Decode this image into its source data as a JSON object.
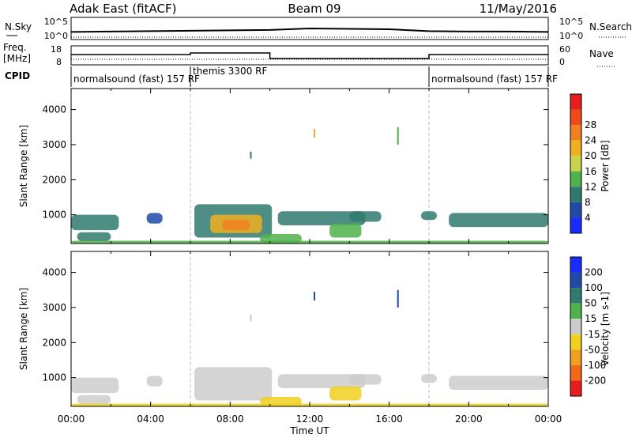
{
  "header": {
    "station": "Adak East (fitACF)",
    "beam": "Beam 09",
    "date": "11/May/2016"
  },
  "chart_data": [
    {
      "type": "line",
      "panel": "noise",
      "left_label": "N.Sky",
      "right_label": "N.Search",
      "left_ticks": [
        "10^5",
        "10^0"
      ],
      "right_ticks": [
        "10^5",
        "10^0"
      ],
      "series": [
        {
          "name": "N.Sky",
          "x": [
            0,
            2,
            4,
            6,
            8,
            10,
            12,
            14,
            16,
            18,
            20,
            22,
            24
          ],
          "y": [
            1.6,
            1.7,
            1.8,
            1.9,
            2.0,
            2.1,
            2.5,
            2.4,
            2.3,
            1.8,
            1.7,
            1.7,
            1.6
          ]
        }
      ]
    },
    {
      "type": "line",
      "panel": "frequency",
      "left_label": "Freq.",
      "left_unit": "[MHz]",
      "left_ticks": [
        "18",
        "8"
      ],
      "right_label": "Nave",
      "right_ticks": [
        "60",
        "0"
      ],
      "series": [
        {
          "name": "Freq.",
          "x": [
            0,
            6,
            6,
            10,
            10,
            18,
            18,
            24
          ],
          "y": [
            13.5,
            13.5,
            14.5,
            14.5,
            11,
            11,
            13.5,
            13.5
          ]
        }
      ]
    },
    {
      "type": "table",
      "panel": "cpid",
      "left_label": "CPID",
      "segments": [
        {
          "label": "normalsound (fast) 157 RF",
          "start": 0,
          "end": 6
        },
        {
          "label": "themis 3300 RF",
          "start": 6,
          "end": 18
        },
        {
          "label": "normalsound (fast) 157 RF",
          "start": 18,
          "end": 24
        }
      ]
    },
    {
      "type": "heatmap",
      "panel": "power",
      "ylabel": "Slant Range [km]",
      "yticks": [
        1000,
        2000,
        3000,
        4000
      ],
      "ylim": [
        180,
        4600
      ],
      "xlim": [
        0,
        24
      ],
      "colorbar_label": "Power [dB]",
      "colorbar_ticks": [
        4,
        8,
        12,
        16,
        20,
        24,
        28
      ],
      "colorbar_colors": [
        "#1a2bff",
        "#1f4aa8",
        "#2f7a6e",
        "#4fb24a",
        "#c8d24a",
        "#f0b020",
        "#f08020",
        "#f04a1a",
        "#e61e1e"
      ],
      "regions": [
        {
          "x0": 0.0,
          "x1": 2.4,
          "y0": 560,
          "y1": 1000,
          "level": 8
        },
        {
          "x0": 0.3,
          "x1": 2.0,
          "y0": 250,
          "y1": 500,
          "level": 8
        },
        {
          "x0": 3.8,
          "x1": 4.6,
          "y0": 750,
          "y1": 1050,
          "level": 6
        },
        {
          "x0": 6.2,
          "x1": 10.1,
          "y0": 350,
          "y1": 1300,
          "level": 10
        },
        {
          "x0": 7.0,
          "x1": 9.6,
          "y0": 480,
          "y1": 1000,
          "level": 20
        },
        {
          "x0": 7.6,
          "x1": 9.0,
          "y0": 560,
          "y1": 860,
          "level": 25
        },
        {
          "x0": 9.5,
          "x1": 11.6,
          "y0": 200,
          "y1": 450,
          "level": 14
        },
        {
          "x0": 10.4,
          "x1": 14.8,
          "y0": 700,
          "y1": 1100,
          "level": 10
        },
        {
          "x0": 13.0,
          "x1": 14.6,
          "y0": 350,
          "y1": 750,
          "level": 15
        },
        {
          "x0": 14.0,
          "x1": 15.6,
          "y0": 800,
          "y1": 1100,
          "level": 8
        },
        {
          "x0": 17.6,
          "x1": 18.4,
          "y0": 850,
          "y1": 1100,
          "level": 8
        },
        {
          "x0": 19.0,
          "x1": 24.0,
          "y0": 650,
          "y1": 1050,
          "level": 8
        },
        {
          "x0": 0.0,
          "x1": 24.0,
          "y0": 190,
          "y1": 260,
          "level": 14
        }
      ],
      "points": [
        {
          "x": 12.2,
          "y1": 3200,
          "y2": 3450,
          "level": 20
        },
        {
          "x": 16.4,
          "y1": 3000,
          "y2": 3500,
          "level": 12
        },
        {
          "x": 9.0,
          "y1": 2600,
          "y2": 2800,
          "level": 8
        }
      ]
    },
    {
      "type": "heatmap",
      "panel": "velocity",
      "ylabel": "Slant Range [km]",
      "yticks": [
        1000,
        2000,
        3000,
        4000
      ],
      "ylim": [
        180,
        4600
      ],
      "xlim": [
        0,
        24
      ],
      "xticks": [
        "00:00",
        "04:00",
        "08:00",
        "12:00",
        "16:00",
        "20:00",
        "00:00"
      ],
      "xlabel": "Time UT",
      "colorbar_label": "Velocity [m s-1]",
      "colorbar_ticks": [
        200,
        100,
        50,
        15,
        -15,
        -50,
        -100,
        -200
      ],
      "colorbar_colors": [
        "#1a2bff",
        "#1f4aa8",
        "#2f7a6e",
        "#4fb24a",
        "#cccccc",
        "#f0d020",
        "#f0a020",
        "#f06a1a",
        "#e61e1e"
      ],
      "regions": [
        {
          "x0": 0.0,
          "x1": 2.4,
          "y0": 560,
          "y1": 1000,
          "level": 0
        },
        {
          "x0": 0.3,
          "x1": 2.0,
          "y0": 250,
          "y1": 500,
          "level": 0
        },
        {
          "x0": 3.8,
          "x1": 4.6,
          "y0": 750,
          "y1": 1050,
          "level": 0
        },
        {
          "x0": 6.2,
          "x1": 10.1,
          "y0": 350,
          "y1": 1300,
          "level": 0
        },
        {
          "x0": 9.5,
          "x1": 11.6,
          "y0": 200,
          "y1": 450,
          "level": -40
        },
        {
          "x0": 10.4,
          "x1": 14.8,
          "y0": 700,
          "y1": 1100,
          "level": 0
        },
        {
          "x0": 13.0,
          "x1": 14.6,
          "y0": 350,
          "y1": 750,
          "level": -20
        },
        {
          "x0": 14.0,
          "x1": 15.6,
          "y0": 800,
          "y1": 1100,
          "level": 0
        },
        {
          "x0": 17.6,
          "x1": 18.4,
          "y0": 850,
          "y1": 1100,
          "level": 0
        },
        {
          "x0": 19.0,
          "x1": 24.0,
          "y0": 650,
          "y1": 1050,
          "level": 0
        },
        {
          "x0": 0.0,
          "x1": 24.0,
          "y0": 190,
          "y1": 260,
          "level": -30
        }
      ],
      "points": [
        {
          "x": 12.2,
          "y1": 3200,
          "y2": 3450,
          "level": 150
        },
        {
          "x": 16.4,
          "y1": 3000,
          "y2": 3500,
          "level": 120
        },
        {
          "x": 9.0,
          "y1": 2600,
          "y2": 2800,
          "level": 0
        }
      ]
    }
  ]
}
